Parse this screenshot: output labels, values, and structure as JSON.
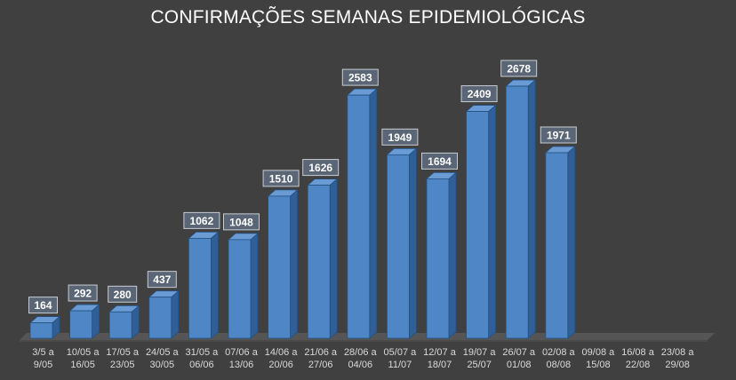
{
  "chart_data": {
    "type": "bar",
    "style": "3d-column",
    "title": "CONFIRMAÇÕES SEMANAS EPIDEMIOLÓGICAS",
    "xlabel": "",
    "ylabel": "",
    "categories": [
      [
        "3/5 a",
        "9/05"
      ],
      [
        "10/05 a",
        "16/05"
      ],
      [
        "17/05 a",
        "23/05"
      ],
      [
        "24/05 a",
        "30/05"
      ],
      [
        "31/05 a",
        "06/06"
      ],
      [
        "07/06 a",
        "13/06"
      ],
      [
        "14/06 a",
        "20/06"
      ],
      [
        "21/06 a",
        "27/06"
      ],
      [
        "28/06 a",
        "04/06"
      ],
      [
        "05/07 a",
        "11/07"
      ],
      [
        "12/07 a",
        "18/07"
      ],
      [
        "19/07 a",
        "25/07"
      ],
      [
        "26/07 a",
        "01/08"
      ],
      [
        "02/08 a",
        "08/08"
      ],
      [
        "09/08 a",
        "15/08"
      ],
      [
        "16/08 a",
        "22/08"
      ],
      [
        "23/08 a",
        "29/08"
      ]
    ],
    "values": [
      164,
      292,
      280,
      437,
      1062,
      1048,
      1510,
      1626,
      2583,
      1949,
      1694,
      2409,
      2678,
      1971,
      null,
      null,
      null
    ],
    "ylim": [
      0,
      2800
    ],
    "grid": false,
    "legend": "none",
    "colors": {
      "bar_front": "#4f86c6",
      "bar_side": "#2f5f96",
      "bar_top": "#6a9bd4",
      "background": "#404040",
      "floor": "#555555",
      "label_bg": "#5a6675"
    }
  }
}
